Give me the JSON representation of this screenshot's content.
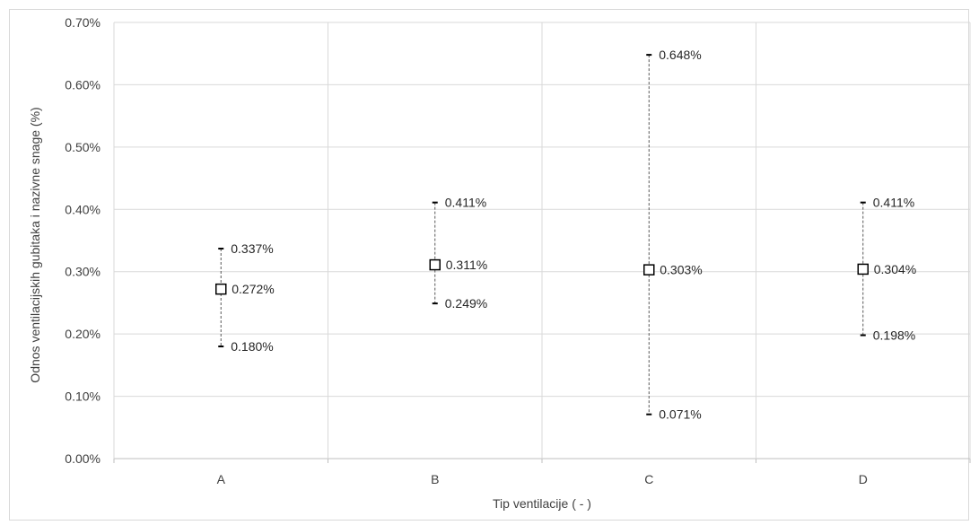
{
  "chart_data": {
    "type": "scatter",
    "xlabel": "Tip ventilacije ( - )",
    "ylabel": "Odnos ventilacijskih gubitaka i nazivne snage (%)",
    "categories": [
      "A",
      "B",
      "C",
      "D"
    ],
    "ylim": [
      0,
      0.007
    ],
    "yticks": [
      0,
      0.001,
      0.002,
      0.003,
      0.004,
      0.005,
      0.006,
      0.007
    ],
    "ytick_labels": [
      "0.00%",
      "0.10%",
      "0.20%",
      "0.30%",
      "0.40%",
      "0.50%",
      "0.60%",
      "0.70%"
    ],
    "grid": true,
    "series": [
      {
        "mean": [
          0.00272,
          0.00311,
          0.00303,
          0.00304
        ],
        "max": [
          0.00337,
          0.00411,
          0.00648,
          0.00411
        ],
        "min": [
          0.0018,
          0.00249,
          0.00071,
          0.00198
        ],
        "mean_labels": [
          "0.272%",
          "0.311%",
          "0.303%",
          "0.304%"
        ],
        "max_labels": [
          "0.337%",
          "0.411%",
          "0.648%",
          "0.411%"
        ],
        "min_labels": [
          "0.180%",
          "0.249%",
          "0.071%",
          "0.198%"
        ]
      }
    ],
    "colors": {
      "grid": "#d9d9d9",
      "axis": "#bfbfbf",
      "marker_stroke": "#000000",
      "range_line": "#595959"
    }
  }
}
